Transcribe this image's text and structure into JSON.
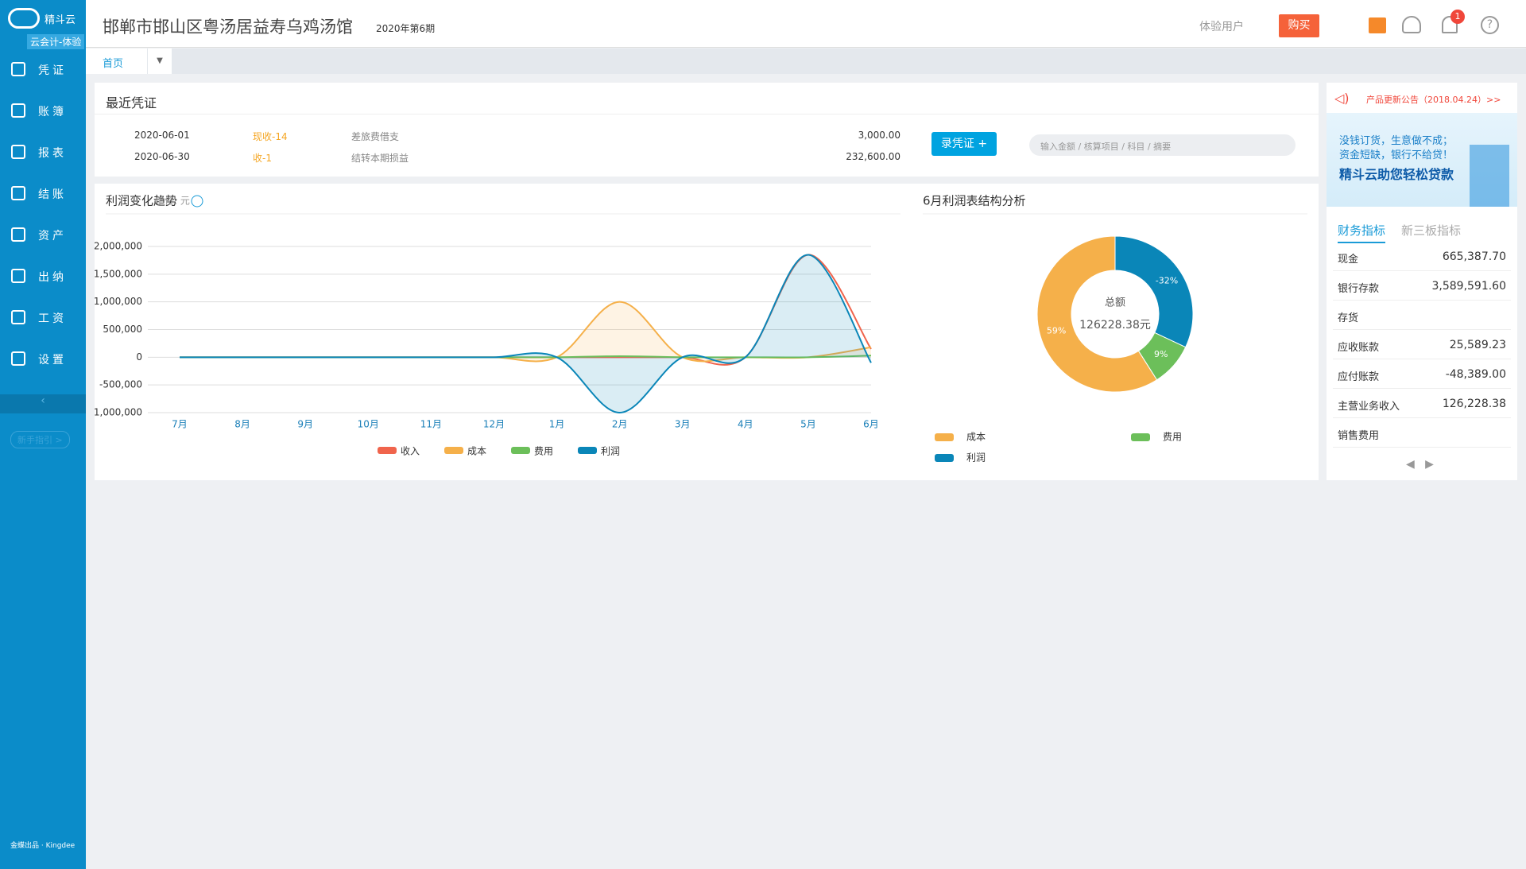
{
  "sidebar": {
    "logo": "精斗云",
    "edition": "云会计-体验",
    "menu": [
      "凭证",
      "账簿",
      "报表",
      "结账",
      "资产",
      "出纳",
      "工资",
      "设置"
    ],
    "guide": "新手指引 >",
    "footer": "金蝶出品 · Kingdee"
  },
  "header": {
    "company": "邯郸市邯山区粤汤居益寿乌鸡汤馆",
    "period": "2020年第6期",
    "user": "体验用户",
    "buy": "购买",
    "badge": "1"
  },
  "tabs": [
    "首页"
  ],
  "recent_vouchers": {
    "title": "最近凭证",
    "rows": [
      [
        "2020-06-01",
        "现收-14",
        "差旅费借支",
        "3,000.00"
      ],
      [
        "2020-06-30",
        "收-1",
        "结转本期损益",
        "232,600.00"
      ]
    ],
    "button": "录凭证 +",
    "search_placeholder": "输入金额 / 核算项目 / 科目 / 摘要"
  },
  "chart_data": [
    {
      "type": "line",
      "title": "利润变化趋势",
      "unit": "单位: 元",
      "categories": [
        "7月",
        "8月",
        "9月",
        "10月",
        "11月",
        "12月",
        "1月",
        "2月",
        "3月",
        "4月",
        "5月",
        "6月"
      ],
      "ylim": [
        -1000000,
        2000000
      ],
      "yticks": [
        {
          "value": -1000000,
          "label": "-1,000,000"
        },
        {
          "value": -500000,
          "label": "-500,000"
        },
        0,
        {
          "value": 500000,
          "label": "500,000"
        },
        {
          "value": 1000000,
          "label": "1,000,000"
        },
        {
          "value": 1500000,
          "label": "1,500,000"
        },
        {
          "value": 2000000,
          "label": "2,000,000"
        }
      ],
      "grid": true,
      "series": [
        {
          "name": "收入",
          "color": "#f0644c",
          "fill_area": false,
          "values": [
            0,
            0,
            0,
            0,
            0,
            0,
            0,
            0,
            0,
            0,
            1850000,
            150000
          ]
        },
        {
          "name": "成本",
          "color": "#f5b04a",
          "fill_area": true,
          "values": [
            0,
            0,
            0,
            0,
            0,
            0,
            0,
            1000000,
            0,
            0,
            0,
            180000
          ]
        },
        {
          "name": "费用",
          "color": "#6cbf5a",
          "fill_area": false,
          "values": [
            0,
            0,
            0,
            0,
            0,
            0,
            0,
            20000,
            0,
            0,
            0,
            30000
          ]
        },
        {
          "name": "利润",
          "color": "#0a86b8",
          "fill_area": true,
          "values": [
            0,
            0,
            0,
            0,
            0,
            0,
            0,
            -1000000,
            0,
            0,
            1850000,
            -100000
          ]
        }
      ]
    },
    {
      "type": "donut",
      "title": "6月利润表结构分析",
      "center_title": "总额",
      "center_value": "126228.38元",
      "categories": [
        "成本",
        "费用",
        "利润"
      ],
      "colors": [
        "#f5b04a",
        "#6cbf5a",
        "#0a86b8"
      ],
      "values": [
        59,
        9,
        -32
      ],
      "value_labels": [
        "59%",
        "9%",
        "-32%"
      ]
    }
  ],
  "notice": {
    "text": "产品更新公告（2018.04.24）>>",
    "banner": [
      "没钱订货，生意做不成；",
      "资金短缺，银行不给贷！",
      "精斗云助您轻松贷款"
    ]
  },
  "indicators": {
    "tabs": [
      "财务指标",
      "新三板指标"
    ],
    "rows": [
      [
        "现金",
        "665,387.70"
      ],
      [
        "银行存款",
        "3,589,591.60"
      ],
      [
        "存货",
        null
      ],
      [
        "应收账款",
        "25,589.23"
      ],
      [
        "应付账款",
        "-48,389.00"
      ],
      [
        "主营业务收入",
        "126,228.38"
      ],
      [
        "销售费用",
        null
      ]
    ]
  }
}
